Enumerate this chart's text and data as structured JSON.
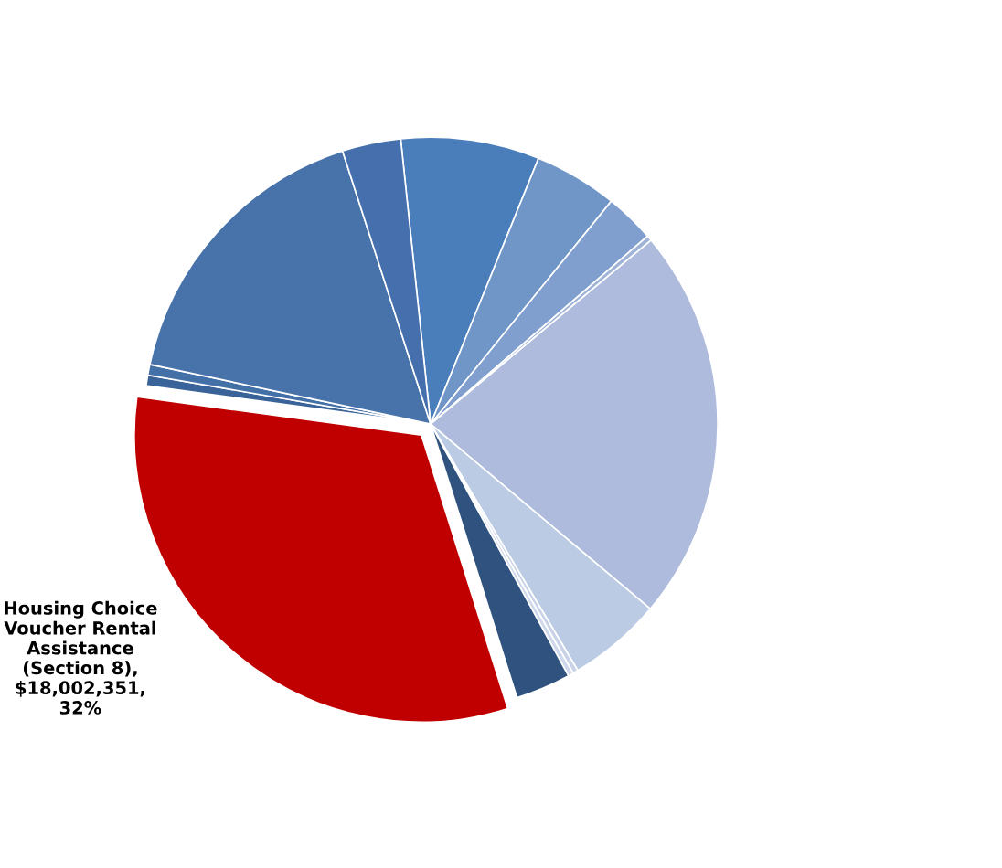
{
  "chart_data": {
    "type": "pie",
    "categories": [
      null,
      null,
      null,
      null,
      null,
      null,
      null,
      null,
      null,
      "Housing Choice\nVoucher Rental\nAssistance\n(Section 8)",
      null,
      null,
      null,
      null
    ],
    "values": [
      7.8,
      4.7,
      2.8,
      0.3,
      22.2,
      5.3,
      0.3,
      0.3,
      3.1,
      32,
      0.6,
      0.6,
      16.7,
      3.3
    ],
    "value_labels": [
      null,
      null,
      null,
      null,
      null,
      null,
      null,
      null,
      null,
      ",\n$18,002,351,\n32%",
      null,
      null,
      null,
      null
    ],
    "colors": [
      "#4a7ebb",
      "#7096c8",
      "#809fcf",
      "#a0b4d8",
      "#aebbdc",
      "#bccbe4",
      "#c8d3e8",
      "#d0d9ec",
      "#2f527e",
      "#c00000",
      "#3a6399",
      "#4470a8",
      "#4772aa",
      "#4570ad"
    ],
    "legend": false
  }
}
